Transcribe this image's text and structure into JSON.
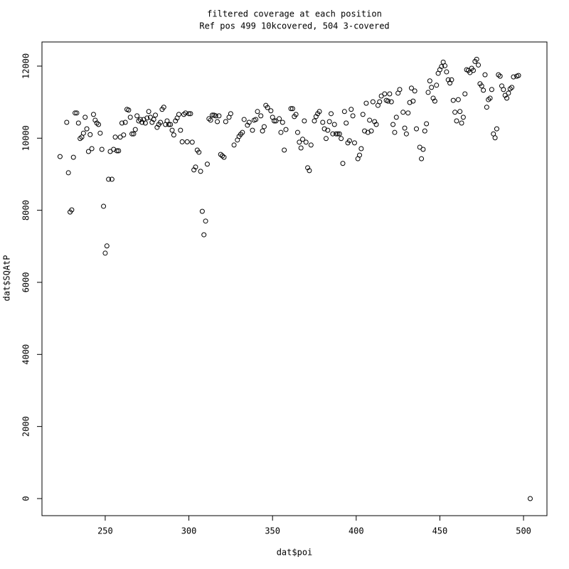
{
  "chart_data": {
    "type": "scatter",
    "title": "filtered coverage at each position",
    "subtitle": "Ref pos 499 10kcovered, 504 3-covered",
    "x_label": "dat$poi",
    "y_label": "dat$SQAtP",
    "color": "#000000",
    "xlim": [
      212.2,
      514.0
    ],
    "ylim": [
      -474,
      12670
    ],
    "xticks": [
      250,
      300,
      350,
      400,
      450,
      500
    ],
    "yticks": [
      0,
      2000,
      4000,
      6000,
      8000,
      10000,
      12000
    ],
    "x": [
      223,
      227,
      228,
      229,
      230,
      231,
      232,
      233,
      234,
      235,
      236,
      237,
      238,
      239,
      240,
      241,
      242,
      243,
      244,
      245,
      246,
      247,
      248,
      249,
      250,
      251,
      252,
      253,
      254,
      255,
      256,
      257,
      258,
      259,
      260,
      261,
      262,
      263,
      264,
      265,
      266,
      267,
      268,
      269,
      270,
      271,
      272,
      273,
      274,
      275,
      276,
      277,
      278,
      279,
      280,
      281,
      282,
      283,
      284,
      285,
      286,
      287,
      288,
      289,
      290,
      291,
      292,
      293,
      294,
      295,
      296,
      297,
      298,
      299,
      300,
      301,
      302,
      303,
      304,
      305,
      306,
      307,
      308,
      309,
      310,
      311,
      312,
      313,
      314,
      315,
      316,
      317,
      318,
      319,
      320,
      321,
      322,
      324,
      325,
      327,
      329,
      330,
      331,
      332,
      333,
      335,
      336,
      338,
      339,
      340,
      341,
      343,
      344,
      345,
      346,
      347,
      349,
      350,
      351,
      352,
      354,
      355,
      356,
      357,
      358,
      361,
      362,
      363,
      364,
      365,
      366,
      367,
      368,
      369,
      370,
      371,
      372,
      373,
      375,
      376,
      377,
      378,
      380,
      381,
      382,
      383,
      384,
      385,
      386,
      387,
      388,
      389,
      390,
      391,
      392,
      393,
      394,
      395,
      396,
      397,
      398,
      399,
      401,
      402,
      403,
      404,
      405,
      406,
      407,
      408,
      409,
      410,
      411,
      412,
      413,
      414,
      415,
      417,
      418,
      419,
      420,
      421,
      422,
      423,
      424,
      425,
      426,
      428,
      429,
      430,
      431,
      432,
      433,
      434,
      435,
      436,
      438,
      439,
      440,
      441,
      442,
      443,
      444,
      445,
      446,
      447,
      448,
      449,
      450,
      451,
      452,
      453,
      454,
      455,
      456,
      457,
      458,
      459,
      460,
      461,
      462,
      463,
      464,
      465,
      466,
      467,
      468,
      469,
      470,
      471,
      472,
      473,
      474,
      475,
      476,
      477,
      478,
      479,
      480,
      481,
      482,
      483,
      484,
      485,
      486,
      487,
      488,
      489,
      490,
      491,
      492,
      493,
      494,
      496,
      497,
      504
    ],
    "values": [
      9490,
      10440,
      9040,
      7950,
      8010,
      9470,
      10700,
      10700,
      10420,
      9990,
      10030,
      10140,
      10580,
      10260,
      9630,
      10100,
      9710,
      10660,
      10500,
      10420,
      10380,
      10140,
      9690,
      8110,
      6810,
      7010,
      8860,
      9630,
      8860,
      9690,
      10030,
      9650,
      9650,
      10030,
      10420,
      10090,
      10440,
      10800,
      10780,
      10580,
      10120,
      10120,
      10240,
      10620,
      10480,
      10520,
      10440,
      10520,
      10420,
      10560,
      10740,
      10580,
      10440,
      10520,
      10640,
      10300,
      10380,
      10440,
      10800,
      10860,
      10380,
      10480,
      10380,
      10380,
      10220,
      10090,
      10480,
      10560,
      10660,
      10220,
      9900,
      10660,
      10700,
      9900,
      10680,
      10680,
      9890,
      9120,
      9200,
      9670,
      9610,
      9080,
      7970,
      7320,
      7700,
      9280,
      10540,
      10500,
      10640,
      10640,
      10620,
      10460,
      10620,
      9550,
      9510,
      9470,
      10460,
      10580,
      10680,
      9810,
      9950,
      10050,
      10110,
      10160,
      10520,
      10360,
      10440,
      10220,
      10500,
      10520,
      10740,
      10620,
      10200,
      10320,
      10910,
      10850,
      10760,
      10580,
      10480,
      10480,
      10540,
      10160,
      10440,
      9670,
      10240,
      10820,
      10820,
      10600,
      10660,
      10160,
      9890,
      9730,
      9970,
      10480,
      9890,
      9180,
      9100,
      9810,
      10480,
      10600,
      10680,
      10740,
      10440,
      10260,
      9990,
      10220,
      10460,
      10680,
      10120,
      10380,
      10120,
      10120,
      10120,
      9990,
      9300,
      10740,
      10420,
      9870,
      9930,
      10800,
      10620,
      9870,
      9430,
      9530,
      9710,
      10660,
      10200,
      10970,
      10160,
      10500,
      10200,
      11010,
      10460,
      10380,
      10910,
      11010,
      11170,
      11230,
      11050,
      11030,
      11230,
      11010,
      10380,
      10160,
      10580,
      11250,
      11350,
      10720,
      10280,
      10120,
      10700,
      10990,
      11390,
      11030,
      11310,
      10260,
      9750,
      9430,
      9690,
      10200,
      10400,
      11270,
      11590,
      11410,
      11110,
      11030,
      11470,
      11800,
      11900,
      11990,
      12110,
      12010,
      11840,
      11620,
      11530,
      11620,
      11050,
      10720,
      10480,
      11070,
      10740,
      10420,
      10580,
      11230,
      11900,
      11880,
      11820,
      11940,
      11880,
      12130,
      12190,
      12030,
      11510,
      11450,
      11330,
      11760,
      10860,
      11070,
      11110,
      11350,
      10120,
      10010,
      10260,
      11760,
      11720,
      11450,
      11350,
      11190,
      11110,
      11250,
      11370,
      11410,
      11700,
      11720,
      11740,
      0
    ]
  }
}
